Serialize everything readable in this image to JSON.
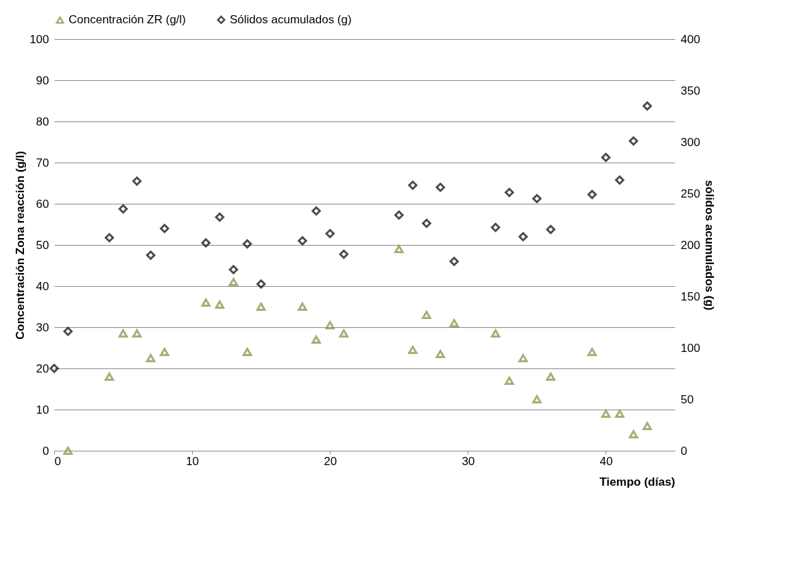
{
  "chart_data": {
    "type": "scatter",
    "xlabel": "Tiempo (días)",
    "ylabel": "Concentración Zona reacción (g/l)",
    "y2label": "sólidos acumulados (g)",
    "xlim": [
      0,
      45
    ],
    "xticks": [
      0,
      10,
      20,
      30,
      40
    ],
    "ylim": [
      0,
      100
    ],
    "yticks": [
      0,
      10,
      20,
      30,
      40,
      50,
      60,
      70,
      80,
      90,
      100
    ],
    "y2lim": [
      0,
      400
    ],
    "y2ticks": [
      0,
      50,
      100,
      150,
      200,
      250,
      300,
      350,
      400
    ],
    "grid": "y",
    "legend": "top",
    "series": [
      {
        "name": "Concentración ZR (g/l)",
        "color": "#77933c",
        "marker": "triangle",
        "x": [
          1,
          4,
          5,
          6,
          7,
          8,
          11,
          12,
          13,
          14,
          15,
          18,
          19,
          20,
          21,
          25,
          26,
          27,
          28,
          29,
          32,
          33,
          34,
          35,
          36,
          39,
          40,
          41,
          42,
          43
        ],
        "values": [
          0,
          18,
          28.5,
          28.5,
          22.5,
          24,
          36,
          35.5,
          41,
          24,
          35,
          35,
          27,
          30.5,
          28.5,
          49,
          24.5,
          33,
          23.5,
          31,
          28.5,
          17,
          22.5,
          12.5,
          18,
          24,
          9,
          9,
          4,
          6
        ]
      },
      {
        "name": "Sólidos acumulados (g)",
        "color": "#000000",
        "marker": "diamond",
        "axis": "y2",
        "x": [
          0,
          1,
          4,
          5,
          6,
          7,
          8,
          11,
          12,
          13,
          14,
          15,
          18,
          19,
          20,
          21,
          25,
          26,
          27,
          28,
          29,
          32,
          33,
          34,
          35,
          36,
          39,
          40,
          41,
          42,
          43
        ],
        "values": [
          80,
          116,
          207,
          235,
          262,
          190,
          216,
          202,
          227,
          176,
          201,
          162,
          204,
          233,
          211,
          191,
          229,
          258,
          221,
          256,
          184,
          217,
          251,
          208,
          245,
          215,
          249,
          285,
          263,
          301,
          335
        ]
      }
    ]
  }
}
